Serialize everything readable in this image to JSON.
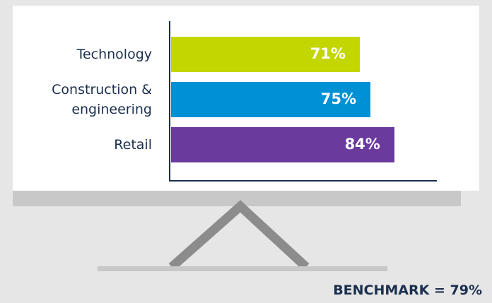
{
  "chart_data": {
    "type": "bar",
    "orientation": "horizontal",
    "categories": [
      "Technology",
      "Construction & engineering",
      "Retail"
    ],
    "values": [
      71,
      75,
      84
    ],
    "value_labels": [
      "71%",
      "75%",
      "84%"
    ],
    "colors": [
      "#c4d600",
      "#0090d4",
      "#6a3a9c"
    ],
    "annotation": "BENCHMARK = 79%"
  }
}
